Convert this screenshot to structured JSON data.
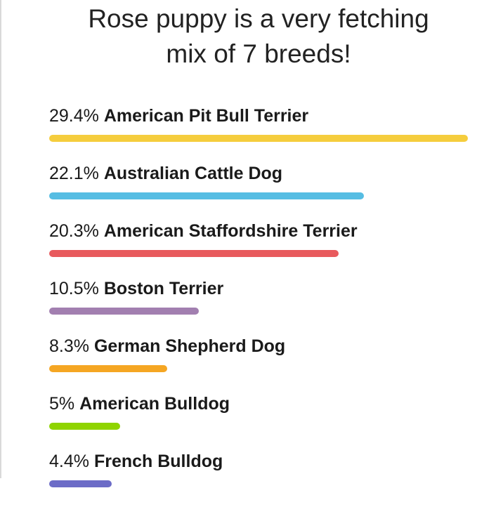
{
  "header": {
    "title_line1": "Rose puppy is a very fetching",
    "title_line2": "mix of 7 breeds!"
  },
  "breeds": [
    {
      "percent_label": "29.4%",
      "name": "American Pit Bull Terrier",
      "percent": 29.4,
      "color": "#f5cd3d"
    },
    {
      "percent_label": "22.1%",
      "name": "Australian Cattle Dog",
      "percent": 22.1,
      "color": "#56bde3"
    },
    {
      "percent_label": "20.3%",
      "name": "American Staffordshire Terrier",
      "percent": 20.3,
      "color": "#e85a5d"
    },
    {
      "percent_label": "10.5%",
      "name": "Boston Terrier",
      "percent": 10.5,
      "color": "#a27fb0"
    },
    {
      "percent_label": "8.3%",
      "name": "German Shepherd Dog",
      "percent": 8.3,
      "color": "#f5a623"
    },
    {
      "percent_label": "5%",
      "name": "American Bulldog",
      "percent": 5,
      "color": "#8fd400"
    },
    {
      "percent_label": "4.4%",
      "name": "French Bulldog",
      "percent": 4.4,
      "color": "#6c6cc7"
    }
  ]
}
